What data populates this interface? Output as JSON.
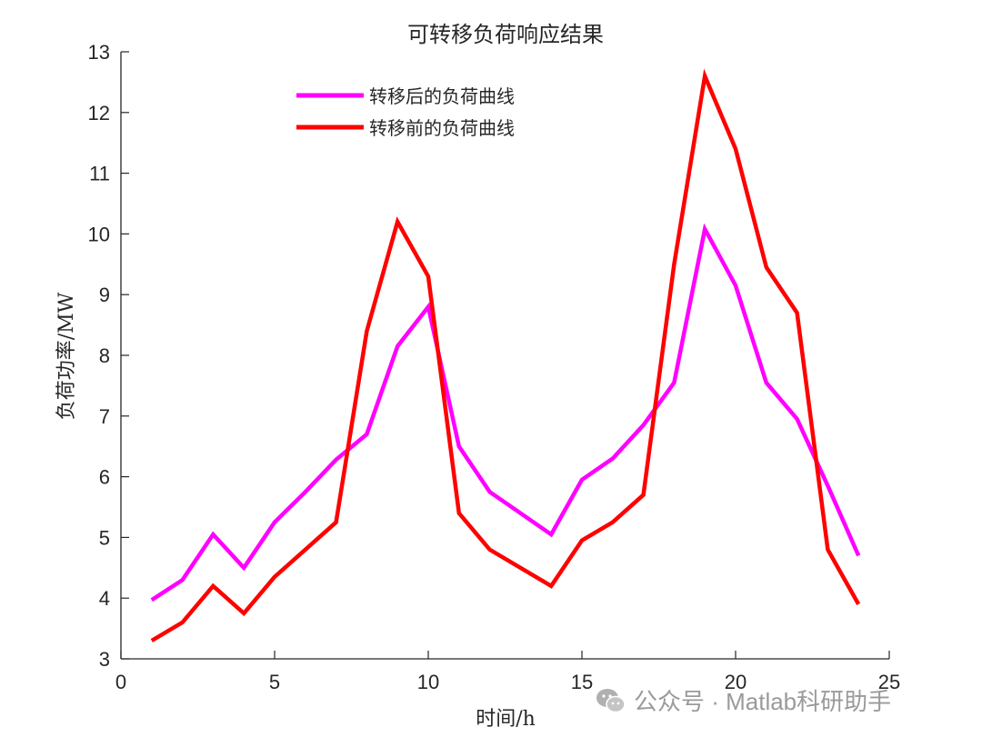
{
  "chart_data": {
    "type": "line",
    "title": "可转移负荷响应结果",
    "xlabel": "时间/h",
    "ylabel": "负荷功率/MW",
    "xlim": [
      0,
      25
    ],
    "ylim": [
      3,
      13
    ],
    "xticks": [
      0,
      5,
      10,
      15,
      20,
      25
    ],
    "yticks": [
      3,
      4,
      5,
      6,
      7,
      8,
      9,
      10,
      11,
      12,
      13
    ],
    "grid": false,
    "legend_position": "top-left-inside",
    "x": [
      1,
      2,
      3,
      4,
      5,
      6,
      7,
      8,
      9,
      10,
      11,
      12,
      13,
      14,
      15,
      16,
      17,
      18,
      19,
      20,
      21,
      22,
      23,
      24
    ],
    "series": [
      {
        "name": "转移后的负荷曲线",
        "color": "#ff00ff",
        "values": [
          3.97,
          4.3,
          5.05,
          4.5,
          5.25,
          5.75,
          6.28,
          6.7,
          8.15,
          8.8,
          6.5,
          5.75,
          5.4,
          5.05,
          5.95,
          6.3,
          6.85,
          7.55,
          10.08,
          9.15,
          7.55,
          6.95,
          5.85,
          4.7
        ]
      },
      {
        "name": "转移前的负荷曲线",
        "color": "#ff0000",
        "values": [
          3.3,
          3.6,
          4.2,
          3.75,
          4.35,
          4.8,
          5.25,
          8.4,
          10.2,
          9.3,
          5.4,
          4.8,
          4.5,
          4.2,
          4.95,
          5.25,
          5.7,
          9.5,
          12.6,
          11.4,
          9.45,
          8.7,
          4.8,
          3.9
        ]
      }
    ]
  },
  "watermark": {
    "icon": "wechat-icon",
    "text": "公众号 · Matlab科研助手"
  }
}
